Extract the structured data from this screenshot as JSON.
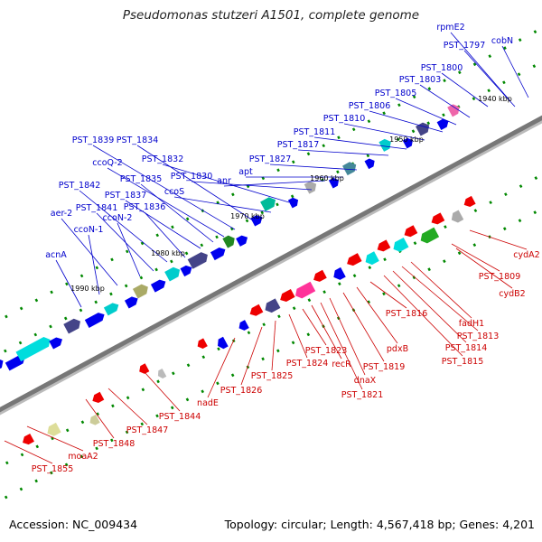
{
  "title": "Pseudomonas stutzeri A1501, complete genome",
  "footer": {
    "accession": "Accession: NC_009434",
    "stats": "Topology: circular; Length: 4,567,418 bp; Genes: 4,201"
  },
  "colors": {
    "forward_label": "#0000cc",
    "reverse_label": "#cc0000",
    "forward_gene": "#0000ee",
    "reverse_gene": "#ee0000",
    "backbone": "#777777",
    "tick_mark": "#008800"
  },
  "scale_labels": [
    "1940 kbp",
    "1950 kbp",
    "1960 kbp",
    "1970 kbp",
    "1980 kbp",
    "1990 kbp"
  ],
  "forward_labels": [
    "rpmE2",
    "PST_1797",
    "cobN",
    "PST_1800",
    "PST_1803",
    "PST_1805",
    "PST_1806",
    "PST_1810",
    "PST_1811",
    "PST_1817",
    "PST_1827",
    "apt",
    "anr",
    "PST_1830",
    "PST_1832",
    "ccoS",
    "PST_1834",
    "PST_1839",
    "ccoQ-2",
    "PST_1835",
    "PST_1837",
    "PST_1836",
    "PST_1842",
    "PST_1841",
    "ccoN-2",
    "aer-2",
    "ccoN-1",
    "acnA"
  ],
  "reverse_labels": [
    "cydA2",
    "PST_1809",
    "cydB2",
    "fadH1",
    "PST_1813",
    "PST_1814",
    "PST_1815",
    "PST_1816",
    "pdxB",
    "PST_1819",
    "dnaX",
    "PST_1821",
    "recR",
    "PST_1823",
    "PST_1824",
    "PST_1825",
    "PST_1826",
    "nadE",
    "PST_1844",
    "PST_1847",
    "PST_1848",
    "moaA2",
    "PST_1855"
  ]
}
